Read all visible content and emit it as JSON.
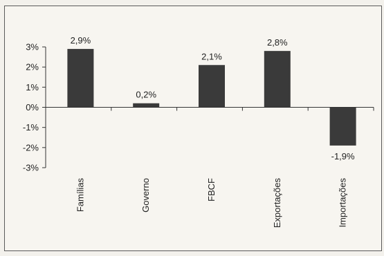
{
  "chart_data": {
    "type": "bar",
    "title": "",
    "xlabel": "",
    "ylabel": "",
    "categories": [
      "Famílias",
      "Governo",
      "FBCF",
      "Exportações",
      "Importações"
    ],
    "values": [
      2.9,
      0.2,
      2.1,
      2.8,
      -1.9
    ],
    "data_labels": [
      "2,9%",
      "0,2%",
      "2,1%",
      "2,8%",
      "-1,9%"
    ],
    "y_ticks": [
      3,
      2,
      1,
      0,
      -1,
      -2,
      -3
    ],
    "y_tick_labels": [
      "3%",
      "2%",
      "1%",
      "0%",
      "-1%",
      "-2%",
      "-3%"
    ],
    "ylim": [
      -3,
      3
    ],
    "grid": false,
    "legend": "none",
    "colors": {
      "bar": "#3a3a3a",
      "axis": "#333333",
      "frame": "#5a5a5a",
      "background": "#f7f5f0"
    }
  }
}
